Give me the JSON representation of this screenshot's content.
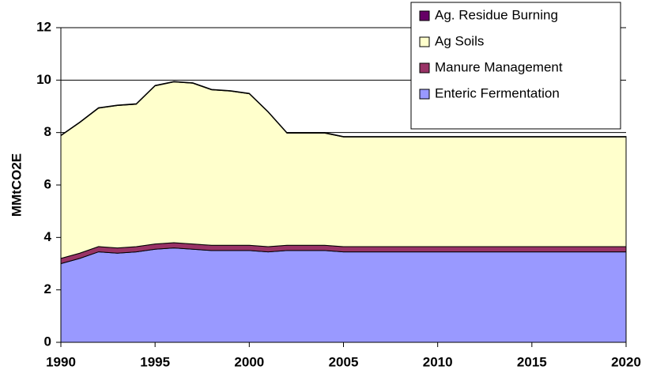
{
  "chart_data": {
    "type": "stacked-area",
    "y_label": "MMtCO2E",
    "x": [
      1990,
      1991,
      1992,
      1993,
      1994,
      1995,
      1996,
      1997,
      1998,
      1999,
      2000,
      2001,
      2002,
      2003,
      2004,
      2005,
      2006,
      2007,
      2008,
      2009,
      2010,
      2011,
      2012,
      2013,
      2014,
      2015,
      2016,
      2017,
      2018,
      2019,
      2020
    ],
    "series": [
      {
        "name": "Enteric Fermentation",
        "color": "#9999ff",
        "values": [
          3.0,
          3.2,
          3.45,
          3.4,
          3.45,
          3.55,
          3.6,
          3.55,
          3.5,
          3.5,
          3.5,
          3.45,
          3.5,
          3.5,
          3.5,
          3.45,
          3.45,
          3.45,
          3.45,
          3.45,
          3.45,
          3.45,
          3.45,
          3.45,
          3.45,
          3.45,
          3.45,
          3.45,
          3.45,
          3.45,
          3.45
        ]
      },
      {
        "name": "Manure Management",
        "color": "#993366",
        "values": [
          0.2,
          0.2,
          0.2,
          0.2,
          0.2,
          0.2,
          0.2,
          0.2,
          0.2,
          0.2,
          0.2,
          0.2,
          0.2,
          0.2,
          0.2,
          0.2,
          0.2,
          0.2,
          0.2,
          0.2,
          0.2,
          0.2,
          0.2,
          0.2,
          0.2,
          0.2,
          0.2,
          0.2,
          0.2,
          0.2,
          0.2
        ]
      },
      {
        "name": "Ag Soils",
        "color": "#ffffcc",
        "values": [
          4.68,
          4.98,
          5.28,
          5.43,
          5.43,
          6.03,
          6.13,
          6.13,
          5.93,
          5.88,
          5.78,
          5.13,
          4.28,
          4.28,
          4.28,
          4.18,
          4.18,
          4.18,
          4.18,
          4.18,
          4.18,
          4.18,
          4.18,
          4.18,
          4.18,
          4.18,
          4.18,
          4.18,
          4.18,
          4.18,
          4.18
        ]
      },
      {
        "name": "Ag. Residue Burning",
        "color": "#660066",
        "values": [
          0.02,
          0.02,
          0.02,
          0.02,
          0.02,
          0.02,
          0.02,
          0.02,
          0.02,
          0.02,
          0.02,
          0.02,
          0.02,
          0.02,
          0.02,
          0.02,
          0.02,
          0.02,
          0.02,
          0.02,
          0.02,
          0.02,
          0.02,
          0.02,
          0.02,
          0.02,
          0.02,
          0.02,
          0.02,
          0.02,
          0.02
        ]
      }
    ],
    "xlim": [
      1990,
      2020
    ],
    "xticks": [
      1990,
      1995,
      2000,
      2005,
      2010,
      2015,
      2020
    ],
    "ylim": [
      0,
      12
    ],
    "yticks": [
      0,
      2,
      4,
      6,
      8,
      10,
      12
    ],
    "grid": true
  }
}
